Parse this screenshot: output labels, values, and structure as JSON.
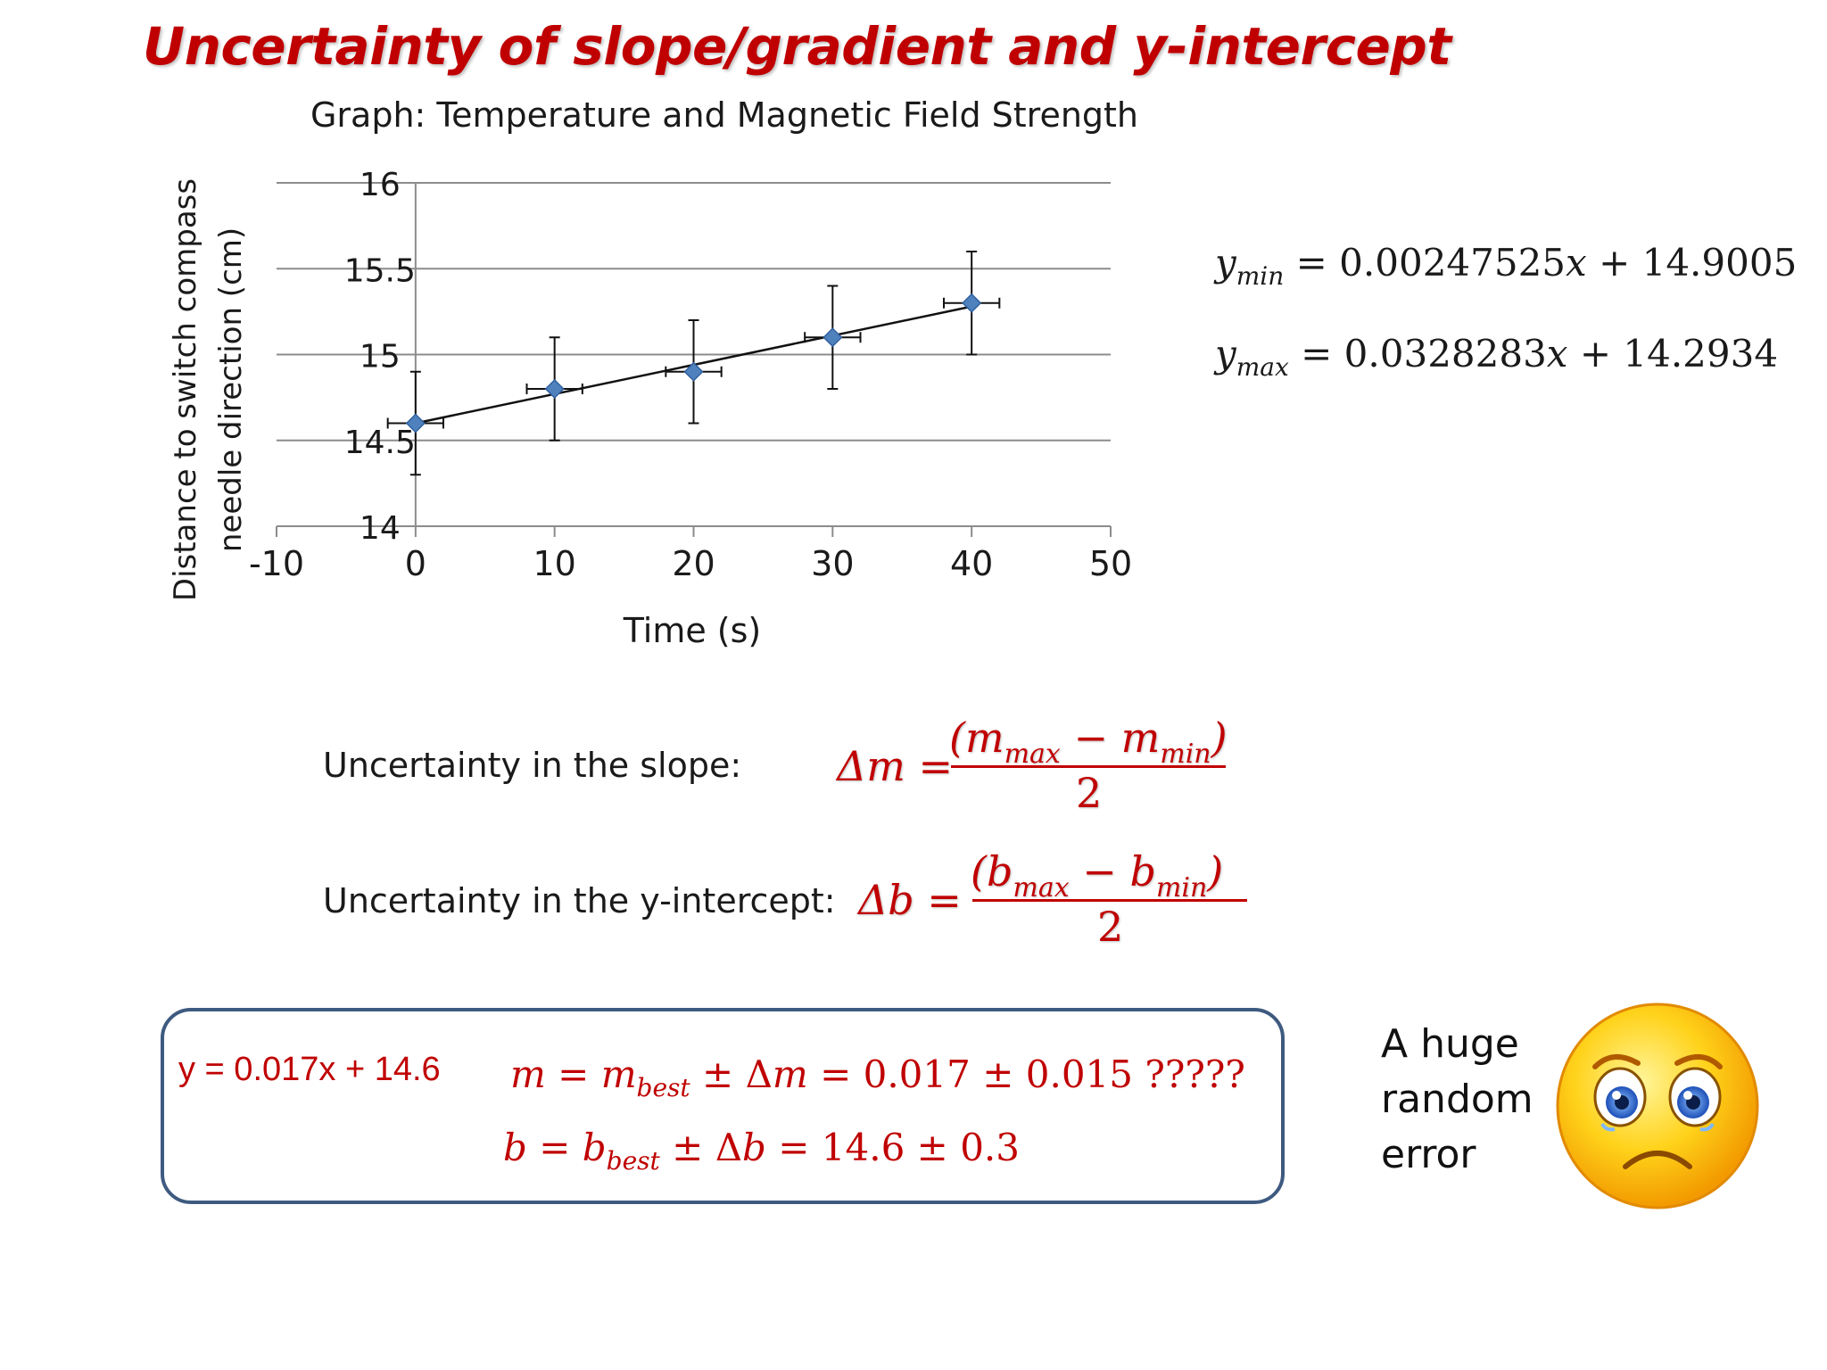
{
  "slide": {
    "title": "Uncertainty of slope/gradient and y-intercept"
  },
  "chart_data": {
    "type": "scatter",
    "title": "Graph: Temperature and Magnetic Field Strength",
    "xlabel": "Time (s)",
    "ylabel_line1": "Distance to switch compass",
    "ylabel_line2": "needle direction (cm)",
    "xlim": [
      -10,
      50
    ],
    "ylim": [
      14,
      16
    ],
    "xticks": [
      "-10",
      "0",
      "10",
      "20",
      "30",
      "40",
      "50"
    ],
    "yticks": [
      "14",
      "14.5",
      "15",
      "15.5",
      "16"
    ],
    "grid": true,
    "series": [
      {
        "x": [
          0,
          10,
          20,
          30,
          40
        ],
        "y": [
          14.6,
          14.8,
          14.9,
          15.1,
          15.3
        ],
        "x_error": [
          2,
          2,
          2,
          2,
          2
        ],
        "y_error": [
          0.3,
          0.3,
          0.3,
          0.3,
          0.3
        ],
        "marker_color": "#4f81bd"
      }
    ],
    "trendline": {
      "slope": 0.017,
      "intercept": 14.6,
      "x_range": [
        0,
        40
      ]
    }
  },
  "equations": {
    "y_min": {
      "subscript": "min",
      "rhs": "= 0.00247525𝑥 + 14.9005"
    },
    "y_max": {
      "subscript": "max",
      "rhs": "= 0.0328283𝑥 + 14.2934"
    }
  },
  "uncertainty": {
    "slope_label": "Uncertainty in the slope:",
    "slope_lhs": "Δ𝑚 =",
    "slope_num_open": "(𝑚",
    "slope_num_sub1": "max",
    "slope_num_mid": " − 𝑚",
    "slope_num_sub2": "min",
    "slope_num_close": ")",
    "slope_den": "2",
    "intercept_label": "Uncertainty in the y-intercept:",
    "intercept_lhs": "Δ𝑏 =",
    "intercept_num_open": "(𝑏",
    "intercept_num_sub1": "max",
    "intercept_num_mid": " − 𝑏",
    "intercept_num_sub2": "min",
    "intercept_num_close": ")",
    "intercept_den": "2"
  },
  "result": {
    "best_fit": "y = 0.017x + 14.6",
    "m_prefix": "𝑚 = 𝑚",
    "m_sub": "best",
    "m_rest": " ± Δ𝑚 = 0.017 ± 0.015 ?????",
    "b_prefix": "𝑏 = 𝑏",
    "b_sub": "best",
    "b_rest": " ± Δ𝑏 = 14.6 ± 0.3"
  },
  "comment": {
    "line1": "A huge",
    "line2": "random",
    "line3": "error"
  },
  "colors": {
    "accent_red": "#c00000",
    "box_border": "#3e5a80",
    "marker": "#4f81bd"
  },
  "icons": {
    "sad_face": "sad-face-emoji-icon"
  }
}
